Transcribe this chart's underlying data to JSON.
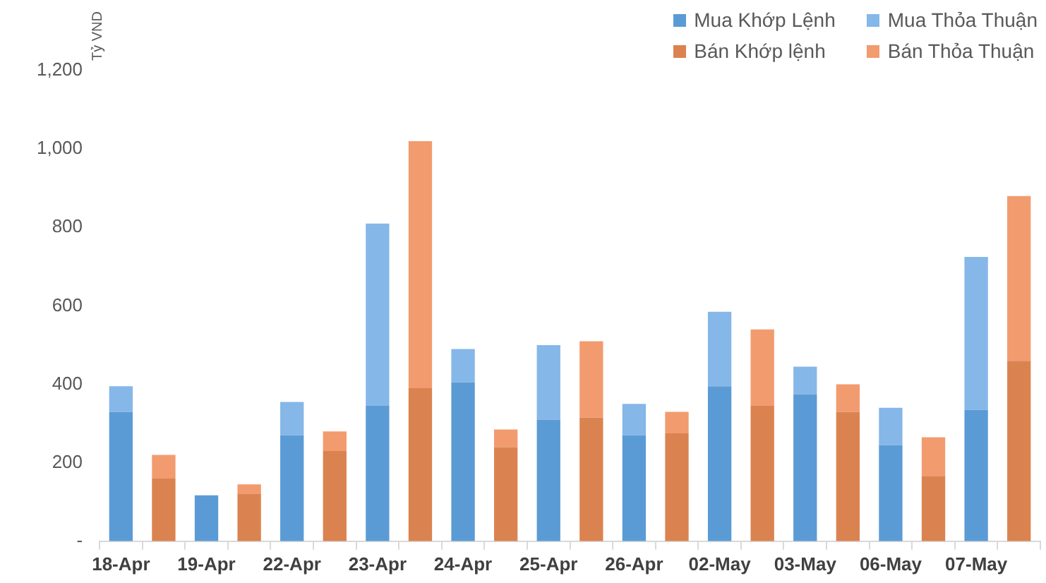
{
  "chart_data": {
    "type": "bar",
    "stacked": true,
    "ylabel": "Tỷ VND",
    "legend": "top right",
    "grid": false,
    "categories": [
      "18-Apr",
      null,
      "19-Apr",
      null,
      "22-Apr",
      null,
      "23-Apr",
      null,
      "24-Apr",
      null,
      "25-Apr",
      null,
      "26-Apr",
      null,
      "02-May",
      null,
      "03-May",
      null,
      "06-May",
      null,
      "07-May",
      null
    ],
    "ylim": [
      0,
      1200
    ],
    "yticks": [
      {
        "value": 0,
        "label": "-"
      },
      200,
      400,
      600,
      800,
      {
        "value": 1000,
        "label": "1,000"
      },
      {
        "value": 1200,
        "label": "1,200"
      }
    ],
    "series": [
      {
        "name": "Mua Khớp Lệnh",
        "color": "#5b9bd5",
        "values": [
          330,
          null,
          117,
          null,
          270,
          null,
          345,
          null,
          405,
          null,
          310,
          null,
          270,
          null,
          395,
          null,
          375,
          null,
          245,
          null,
          335,
          null
        ]
      },
      {
        "name": "Mua Thỏa Thuận",
        "color": "#85b7e8",
        "values": [
          65,
          null,
          0,
          null,
          85,
          null,
          465,
          null,
          85,
          null,
          190,
          null,
          80,
          null,
          190,
          null,
          70,
          null,
          95,
          null,
          390,
          null
        ]
      },
      {
        "name": "Bán Khớp lệnh",
        "color": "#db8350",
        "values": [
          null,
          160,
          null,
          120,
          null,
          230,
          null,
          390,
          null,
          240,
          null,
          315,
          null,
          275,
          null,
          345,
          null,
          330,
          null,
          165,
          null,
          460
        ]
      },
      {
        "name": "Bán Thỏa Thuận",
        "color": "#f29b6f",
        "values": [
          null,
          60,
          null,
          25,
          null,
          50,
          null,
          630,
          null,
          45,
          null,
          195,
          null,
          55,
          null,
          195,
          null,
          70,
          null,
          100,
          null,
          420
        ]
      }
    ]
  }
}
